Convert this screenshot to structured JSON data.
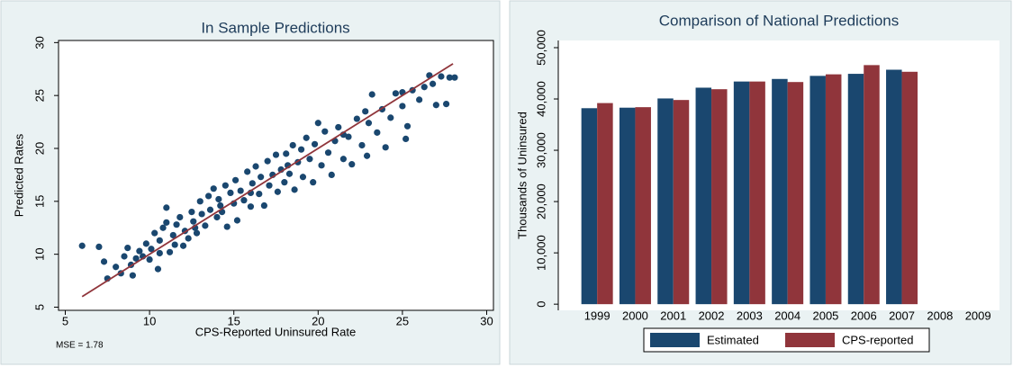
{
  "chart_data": [
    {
      "type": "scatter",
      "title": "In Sample Predictions",
      "x_label": "CPS-Reported Uninsured Rate",
      "y_label": "Predicted Rates",
      "annotation": "MSE = 1.78",
      "color": "#1a476f",
      "x": [
        6,
        7,
        7.5,
        7.3,
        8,
        8.3,
        8.5,
        8.7,
        8.9,
        9.2,
        9.4,
        9.6,
        9.8,
        10.0,
        10.1,
        10.3,
        10.5,
        10.6,
        10.8,
        11.0,
        11.0,
        11.2,
        11.4,
        11.6,
        11.8,
        12.0,
        12.1,
        12.3,
        12.5,
        12.6,
        12.8,
        13.0,
        13.1,
        13.3,
        13.5,
        13.6,
        13.8,
        14.0,
        14.1,
        14.3,
        14.5,
        14.6,
        14.8,
        15.0,
        15.1,
        15.2,
        15.4,
        15.6,
        15.8,
        16.0,
        16.1,
        16.3,
        16.5,
        16.6,
        16.8,
        17.0,
        17.1,
        17.3,
        17.5,
        17.6,
        17.8,
        18.0,
        18.1,
        18.3,
        18.5,
        18.6,
        18.8,
        19.0,
        19.1,
        19.3,
        19.5,
        19.7,
        19.8,
        20.0,
        20.2,
        20.4,
        20.6,
        20.8,
        21.0,
        21.2,
        21.5,
        21.8,
        22.0,
        22.3,
        22.6,
        22.9,
        23.2,
        23.5,
        23.8,
        24.0,
        24.3,
        24.6,
        25.0,
        25.2,
        25.3,
        25.6,
        26.0,
        26.3,
        26.6,
        27.0,
        27.3,
        27.6,
        27.8,
        28.1,
        25.0,
        21.5,
        23.0,
        12.7,
        11.5,
        16.0,
        18.2,
        14.2,
        10.6,
        9.0,
        22.8,
        26.8
      ],
      "y": [
        10.8,
        10.7,
        7.7,
        9.3,
        8.8,
        8.2,
        9.8,
        10.6,
        9.0,
        9.6,
        10.3,
        9.8,
        11.0,
        9.5,
        10.5,
        12.0,
        8.6,
        11.3,
        12.5,
        13.0,
        14.4,
        10.2,
        11.8,
        12.8,
        13.5,
        10.8,
        12.2,
        11.5,
        14.0,
        13.1,
        12.0,
        15.0,
        13.8,
        12.7,
        15.5,
        14.2,
        16.2,
        13.5,
        15.2,
        14.0,
        16.5,
        12.6,
        15.8,
        14.8,
        17.0,
        13.2,
        16.0,
        15.1,
        17.8,
        14.5,
        16.7,
        18.3,
        15.7,
        17.3,
        14.6,
        18.8,
        16.5,
        17.5,
        19.4,
        15.9,
        18.0,
        16.8,
        19.5,
        17.6,
        20.3,
        16.1,
        18.7,
        19.9,
        17.3,
        21.0,
        19.0,
        16.8,
        20.4,
        22.4,
        18.4,
        21.6,
        19.6,
        17.5,
        20.7,
        22.0,
        19.0,
        21.1,
        18.5,
        22.8,
        20.3,
        19.3,
        25.1,
        21.5,
        23.7,
        20.1,
        22.9,
        25.2,
        24.0,
        20.9,
        22.1,
        25.5,
        24.6,
        25.8,
        26.9,
        24.1,
        26.8,
        24.2,
        26.7,
        26.7,
        25.3,
        21.3,
        22.4,
        12.5,
        10.9,
        15.8,
        18.4,
        14.6,
        10.1,
        8.0,
        23.5,
        26.1
      ],
      "fit": {
        "color": "#90353b",
        "x": [
          6,
          28
        ],
        "y": [
          6,
          28
        ]
      },
      "xlim": [
        4.6,
        30.4
      ],
      "ylim": [
        4.7,
        30.2
      ],
      "xticks": [
        5,
        10,
        15,
        20,
        25,
        30
      ],
      "yticks": [
        5,
        10,
        15,
        20,
        25,
        30
      ]
    },
    {
      "type": "bar",
      "title": "Comparison of National Predictions",
      "y_label": "Thousands of Uninsured",
      "categories": [
        "1999",
        "2000",
        "2001",
        "2002",
        "2003",
        "2004",
        "2005",
        "2006",
        "2007",
        "2008",
        "2009"
      ],
      "series": [
        {
          "name": "Estimated",
          "color": "#1a476f",
          "values": [
            38200,
            38300,
            40100,
            42200,
            43400,
            43900,
            44500,
            44900,
            45700,
            null,
            null
          ]
        },
        {
          "name": "CPS-reported",
          "color": "#90353b",
          "values": [
            39200,
            38400,
            39800,
            41900,
            43400,
            43300,
            44800,
            46600,
            45300,
            null,
            null
          ]
        }
      ],
      "ylim": [
        -1200,
        51400
      ],
      "yticks": [
        0,
        {
          "value": 10000,
          "label": "10,000"
        },
        {
          "value": 20000,
          "label": "20,000"
        },
        {
          "value": 30000,
          "label": "30,000"
        },
        {
          "value": 40000,
          "label": "40,000"
        },
        {
          "value": 50000,
          "label": "50,000"
        }
      ],
      "legend": "bottom"
    }
  ]
}
